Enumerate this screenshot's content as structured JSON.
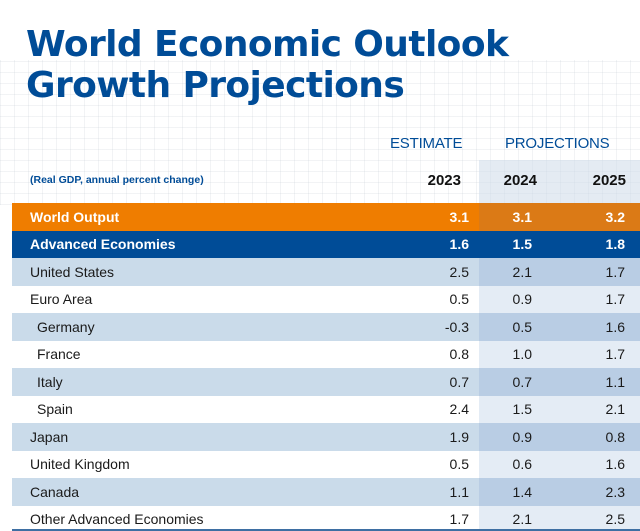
{
  "title": {
    "line1": "World Economic Outlook",
    "line2": "Growth Projections"
  },
  "header": {
    "estimate_label": "ESTIMATE",
    "projections_label": "PROJECTIONS",
    "subtitle": "(Real GDP, annual percent change)",
    "years": [
      "2023",
      "2024",
      "2025"
    ]
  },
  "colors": {
    "brand_blue": "#004C97",
    "world_orange": "#EF7D00",
    "row_shade": "#CADBEA"
  },
  "rows": [
    {
      "name": "World Output",
      "values": [
        "3.1",
        "3.1",
        "3.2"
      ],
      "style": "world"
    },
    {
      "name": "Advanced Economies",
      "values": [
        "1.6",
        "1.5",
        "1.8"
      ],
      "style": "adv"
    },
    {
      "name": "United States",
      "values": [
        "2.5",
        "2.1",
        "1.7"
      ],
      "style": "shade"
    },
    {
      "name": "Euro Area",
      "values": [
        "0.5",
        "0.9",
        "1.7"
      ],
      "style": "plain"
    },
    {
      "name": "Germany",
      "values": [
        "-0.3",
        "0.5",
        "1.6"
      ],
      "style": "shade",
      "indent": true
    },
    {
      "name": "France",
      "values": [
        "0.8",
        "1.0",
        "1.7"
      ],
      "style": "plain",
      "indent": true
    },
    {
      "name": "Italy",
      "values": [
        "0.7",
        "0.7",
        "1.1"
      ],
      "style": "shade",
      "indent": true
    },
    {
      "name": "Spain",
      "values": [
        "2.4",
        "1.5",
        "2.1"
      ],
      "style": "plain",
      "indent": true
    },
    {
      "name": "Japan",
      "values": [
        "1.9",
        "0.9",
        "0.8"
      ],
      "style": "shade"
    },
    {
      "name": "United Kingdom",
      "values": [
        "0.5",
        "0.6",
        "1.6"
      ],
      "style": "plain"
    },
    {
      "name": "Canada",
      "values": [
        "1.1",
        "1.4",
        "2.3"
      ],
      "style": "shade"
    },
    {
      "name": "Other Advanced Economies",
      "values": [
        "1.7",
        "2.1",
        "2.5"
      ],
      "style": "plain"
    }
  ]
}
